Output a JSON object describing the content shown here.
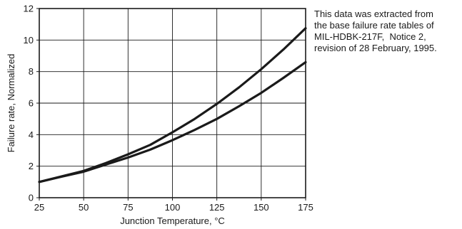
{
  "chart_data": {
    "type": "line",
    "title": "",
    "xlabel": "Junction Temperature, °C",
    "ylabel": "Failure rate, Normalized",
    "xlim": [
      25,
      175
    ],
    "ylim": [
      0,
      12
    ],
    "x_ticks": [
      "25",
      "50",
      "75",
      "100",
      "125",
      "150",
      "175"
    ],
    "y_ticks": [
      "0",
      "2",
      "4",
      "6",
      "8",
      "10",
      "12"
    ],
    "grid": true,
    "legend": "none",
    "series": [
      {
        "x": [
          25,
          37.5,
          50,
          62.5,
          75,
          87.5,
          100,
          112.5,
          125,
          137.5,
          150,
          162.5,
          175
        ],
        "y": [
          1.0,
          1.35,
          1.7,
          2.2,
          2.75,
          3.35,
          4.15,
          5.0,
          5.95,
          7.0,
          8.15,
          9.4,
          10.75
        ],
        "color": "#1a1a1a"
      },
      {
        "x": [
          25,
          37.5,
          50,
          62.5,
          75,
          87.5,
          100,
          112.5,
          125,
          137.5,
          150,
          162.5,
          175
        ],
        "y": [
          1.0,
          1.33,
          1.65,
          2.1,
          2.55,
          3.05,
          3.65,
          4.3,
          5.0,
          5.8,
          6.65,
          7.6,
          8.6
        ],
        "color": "#1a1a1a"
      }
    ]
  },
  "annotation": {
    "lines": [
      "This data was extracted from",
      "the base failure rate tables of",
      "MIL-HDBK-217F,  Notice 2,",
      "revision of 28 February, 1995."
    ]
  }
}
